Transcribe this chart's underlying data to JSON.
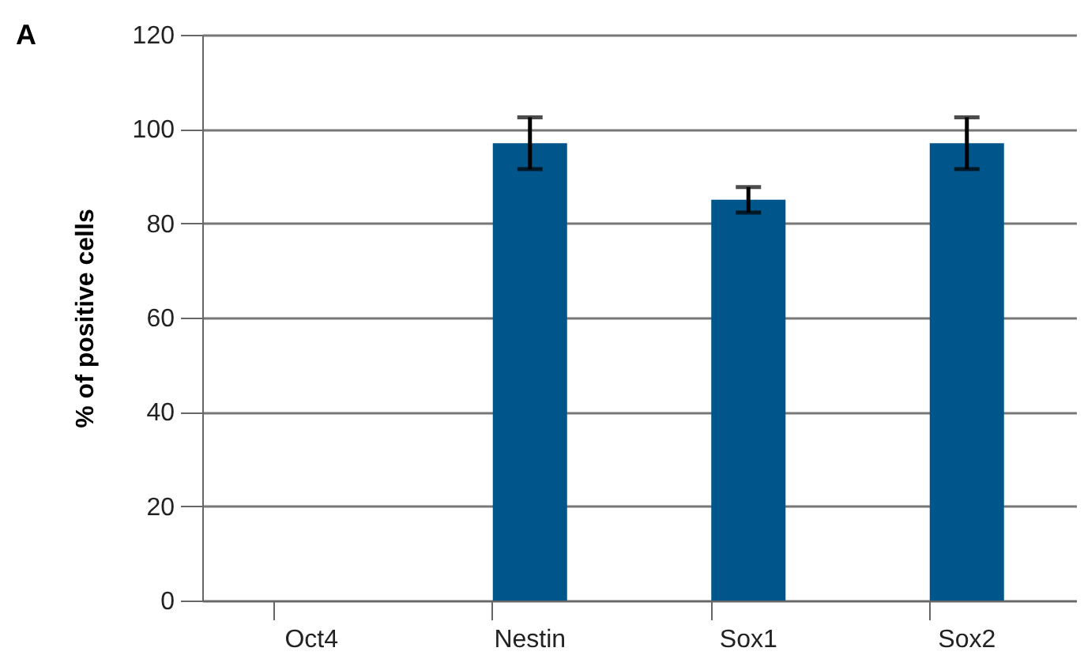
{
  "chart_data": {
    "type": "bar",
    "ylabel": "% of positive cells",
    "categories": [
      "Oct4",
      "Nestin",
      "Sox1",
      "Sox2"
    ],
    "values": [
      0,
      97,
      85,
      97
    ],
    "errors": [
      null,
      5.5,
      2.7,
      5.5
    ],
    "color": "#00558a",
    "ylim": [
      0,
      120
    ],
    "yticks": [
      0,
      20,
      40,
      60,
      80,
      100,
      120
    ],
    "grid": "y",
    "annotations": [
      "A"
    ]
  }
}
